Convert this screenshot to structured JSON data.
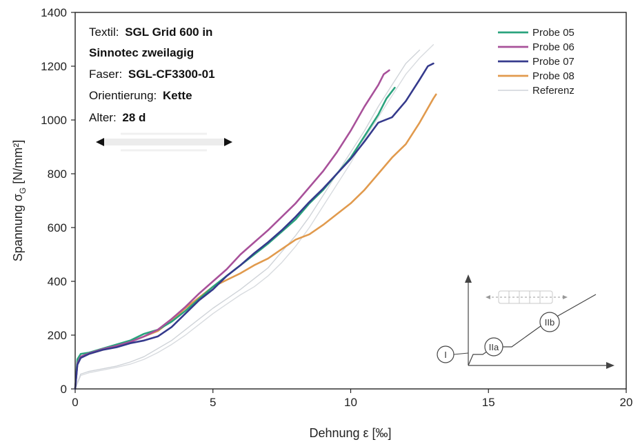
{
  "info": {
    "textil_label": "Textil:",
    "textil_value_1": "SGL Grid 600 in",
    "textil_value_2": "Sinnotec zweilagig",
    "faser_label": "Faser:",
    "faser_value": "SGL-CF3300-01",
    "orientierung_label": "Orientierung:",
    "orientierung_value": "Kette",
    "alter_label": "Alter:",
    "alter_value": "28 d"
  },
  "inset": {
    "stage_1": "I",
    "stage_2": "IIa",
    "stage_3": "IIb"
  },
  "chart_data": {
    "type": "line",
    "xlabel": "Dehnung ε [‰]",
    "ylabel": "Spannung σG [N/mm²]",
    "ylabel_main": "Spannung σ",
    "ylabel_sub": "G",
    "ylabel_unit": " [N/mm²]",
    "xlim": [
      0,
      20
    ],
    "ylim": [
      0,
      1400
    ],
    "xticks": [
      0,
      5,
      10,
      15,
      20
    ],
    "yticks": [
      0,
      200,
      400,
      600,
      800,
      1000,
      1200,
      1400
    ],
    "grid": false,
    "legend_position": "top-right",
    "series": [
      {
        "name": "Probe 05",
        "color": "#2aa37d",
        "points": [
          [
            0,
            0
          ],
          [
            0.08,
            110
          ],
          [
            0.2,
            130
          ],
          [
            0.5,
            135
          ],
          [
            1,
            150
          ],
          [
            1.5,
            165
          ],
          [
            2,
            180
          ],
          [
            2.5,
            205
          ],
          [
            3,
            220
          ],
          [
            3.5,
            250
          ],
          [
            4,
            290
          ],
          [
            4.5,
            335
          ],
          [
            5,
            380
          ],
          [
            5.5,
            420
          ],
          [
            6,
            460
          ],
          [
            6.5,
            500
          ],
          [
            7,
            540
          ],
          [
            7.5,
            585
          ],
          [
            8,
            630
          ],
          [
            8.5,
            690
          ],
          [
            9,
            740
          ],
          [
            9.5,
            800
          ],
          [
            10,
            860
          ],
          [
            10.5,
            940
          ],
          [
            11,
            1020
          ],
          [
            11.3,
            1080
          ],
          [
            11.6,
            1120
          ]
        ]
      },
      {
        "name": "Probe 06",
        "color": "#a8519a",
        "points": [
          [
            0,
            0
          ],
          [
            0.08,
            95
          ],
          [
            0.2,
            120
          ],
          [
            0.5,
            132
          ],
          [
            1,
            148
          ],
          [
            1.5,
            160
          ],
          [
            2,
            175
          ],
          [
            2.5,
            195
          ],
          [
            3,
            220
          ],
          [
            3.5,
            260
          ],
          [
            4,
            305
          ],
          [
            4.5,
            355
          ],
          [
            5,
            400
          ],
          [
            5.5,
            445
          ],
          [
            6,
            500
          ],
          [
            6.5,
            545
          ],
          [
            7,
            590
          ],
          [
            7.5,
            640
          ],
          [
            8,
            690
          ],
          [
            8.5,
            750
          ],
          [
            9,
            810
          ],
          [
            9.5,
            880
          ],
          [
            10,
            960
          ],
          [
            10.5,
            1050
          ],
          [
            11,
            1130
          ],
          [
            11.2,
            1170
          ],
          [
            11.4,
            1185
          ]
        ]
      },
      {
        "name": "Probe 07",
        "color": "#353a8c",
        "points": [
          [
            0,
            0
          ],
          [
            0.08,
            90
          ],
          [
            0.2,
            115
          ],
          [
            0.5,
            130
          ],
          [
            1,
            145
          ],
          [
            1.5,
            155
          ],
          [
            2,
            170
          ],
          [
            2.5,
            180
          ],
          [
            3,
            195
          ],
          [
            3.5,
            230
          ],
          [
            4,
            280
          ],
          [
            4.5,
            330
          ],
          [
            5,
            370
          ],
          [
            5.5,
            420
          ],
          [
            6,
            460
          ],
          [
            6.5,
            505
          ],
          [
            7,
            545
          ],
          [
            7.5,
            590
          ],
          [
            8,
            640
          ],
          [
            8.5,
            695
          ],
          [
            9,
            745
          ],
          [
            9.5,
            800
          ],
          [
            10,
            855
          ],
          [
            10.5,
            920
          ],
          [
            11,
            990
          ],
          [
            11.5,
            1010
          ],
          [
            12,
            1070
          ],
          [
            12.5,
            1150
          ],
          [
            12.8,
            1200
          ],
          [
            13,
            1210
          ]
        ]
      },
      {
        "name": "Probe 08",
        "color": "#e19a4d",
        "points": [
          [
            0,
            0
          ],
          [
            0.08,
            95
          ],
          [
            0.2,
            118
          ],
          [
            0.5,
            130
          ],
          [
            1,
            145
          ],
          [
            1.5,
            160
          ],
          [
            2,
            175
          ],
          [
            2.5,
            195
          ],
          [
            3,
            215
          ],
          [
            3.5,
            255
          ],
          [
            4,
            300
          ],
          [
            4.5,
            340
          ],
          [
            5,
            380
          ],
          [
            5.5,
            405
          ],
          [
            6,
            430
          ],
          [
            6.5,
            460
          ],
          [
            7,
            485
          ],
          [
            7.5,
            520
          ],
          [
            8,
            555
          ],
          [
            8.5,
            575
          ],
          [
            9,
            610
          ],
          [
            9.5,
            650
          ],
          [
            10,
            690
          ],
          [
            10.5,
            740
          ],
          [
            11,
            800
          ],
          [
            11.5,
            860
          ],
          [
            12,
            910
          ],
          [
            12.5,
            990
          ],
          [
            13,
            1080
          ],
          [
            13.1,
            1095
          ]
        ]
      },
      {
        "name": "Referenz",
        "color": "#cfd3d8",
        "points": [
          [
            0,
            0
          ],
          [
            0.2,
            55
          ],
          [
            0.5,
            65
          ],
          [
            1,
            75
          ],
          [
            1.5,
            85
          ],
          [
            2,
            100
          ],
          [
            2.5,
            120
          ],
          [
            3,
            150
          ],
          [
            3.5,
            180
          ],
          [
            4,
            220
          ],
          [
            4.5,
            260
          ],
          [
            5,
            300
          ],
          [
            5.5,
            335
          ],
          [
            6,
            370
          ],
          [
            6.5,
            410
          ],
          [
            7,
            450
          ],
          [
            7.5,
            510
          ],
          [
            8,
            570
          ],
          [
            8.5,
            640
          ],
          [
            9,
            720
          ],
          [
            9.5,
            800
          ],
          [
            10,
            880
          ],
          [
            10.5,
            960
          ],
          [
            11,
            1050
          ],
          [
            11.5,
            1130
          ],
          [
            12,
            1210
          ],
          [
            12.5,
            1260
          ]
        ]
      },
      {
        "name": "",
        "color": "#d8dbdf",
        "points": [
          [
            0,
            0
          ],
          [
            0.2,
            50
          ],
          [
            0.5,
            60
          ],
          [
            1,
            70
          ],
          [
            1.5,
            80
          ],
          [
            2,
            92
          ],
          [
            2.5,
            110
          ],
          [
            3,
            135
          ],
          [
            3.5,
            165
          ],
          [
            4,
            200
          ],
          [
            4.5,
            240
          ],
          [
            5,
            280
          ],
          [
            5.5,
            315
          ],
          [
            6,
            350
          ],
          [
            6.5,
            380
          ],
          [
            7,
            420
          ],
          [
            7.5,
            470
          ],
          [
            8,
            530
          ],
          [
            8.5,
            600
          ],
          [
            9,
            680
          ],
          [
            9.5,
            760
          ],
          [
            10,
            840
          ],
          [
            10.5,
            930
          ],
          [
            11,
            1010
          ],
          [
            11.5,
            1090
          ],
          [
            12,
            1170
          ],
          [
            12.5,
            1230
          ],
          [
            13,
            1280
          ]
        ]
      }
    ]
  }
}
